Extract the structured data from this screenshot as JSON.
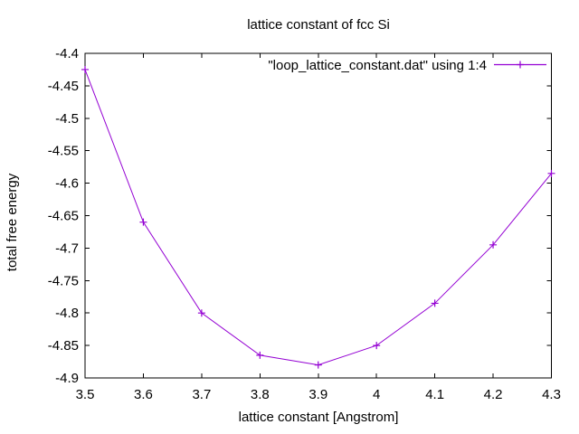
{
  "title": "lattice constant of fcc Si",
  "axes": {
    "x": {
      "label": "lattice constant [Angstrom]",
      "min": 3.5,
      "max": 4.3,
      "ticks": [
        {
          "value": 3.5,
          "label": "3.5"
        },
        {
          "value": 3.6,
          "label": "3.6"
        },
        {
          "value": 3.7,
          "label": "3.7"
        },
        {
          "value": 3.8,
          "label": "3.8"
        },
        {
          "value": 3.9,
          "label": "3.9"
        },
        {
          "value": 4.0,
          "label": "4"
        },
        {
          "value": 4.1,
          "label": "4.1"
        },
        {
          "value": 4.2,
          "label": "4.2"
        },
        {
          "value": 4.3,
          "label": "4.3"
        }
      ]
    },
    "y": {
      "label": "total free energy",
      "min": -4.9,
      "max": -4.4,
      "ticks": [
        {
          "value": -4.4,
          "label": "-4.4"
        },
        {
          "value": -4.45,
          "label": "-4.45"
        },
        {
          "value": -4.5,
          "label": "-4.5"
        },
        {
          "value": -4.55,
          "label": "-4.55"
        },
        {
          "value": -4.6,
          "label": "-4.6"
        },
        {
          "value": -4.65,
          "label": "-4.65"
        },
        {
          "value": -4.7,
          "label": "-4.7"
        },
        {
          "value": -4.75,
          "label": "-4.75"
        },
        {
          "value": -4.8,
          "label": "-4.8"
        },
        {
          "value": -4.85,
          "label": "-4.85"
        },
        {
          "value": -4.9,
          "label": "-4.9"
        }
      ]
    }
  },
  "legend": {
    "label": "\"loop_lattice_constant.dat\" using 1:4",
    "position": "top-right-inside"
  },
  "colors": {
    "series": "#9400d3",
    "axis": "#000000",
    "text": "#000000",
    "background": "#ffffff"
  },
  "chart_data": {
    "type": "line",
    "title": "lattice constant of fcc Si",
    "xlabel": "lattice constant [Angstrom]",
    "ylabel": "total free energy",
    "xlim": [
      3.5,
      4.3
    ],
    "ylim": [
      -4.9,
      -4.4
    ],
    "grid": false,
    "legend_position": "top-right-inside",
    "series": [
      {
        "name": "\"loop_lattice_constant.dat\" using 1:4",
        "color": "#9400d3",
        "marker": "plus",
        "x": [
          3.5,
          3.6,
          3.7,
          3.8,
          3.9,
          4.0,
          4.1,
          4.2,
          4.3
        ],
        "y": [
          -4.425,
          -4.66,
          -4.8,
          -4.865,
          -4.88,
          -4.85,
          -4.785,
          -4.695,
          -4.585
        ]
      }
    ]
  }
}
